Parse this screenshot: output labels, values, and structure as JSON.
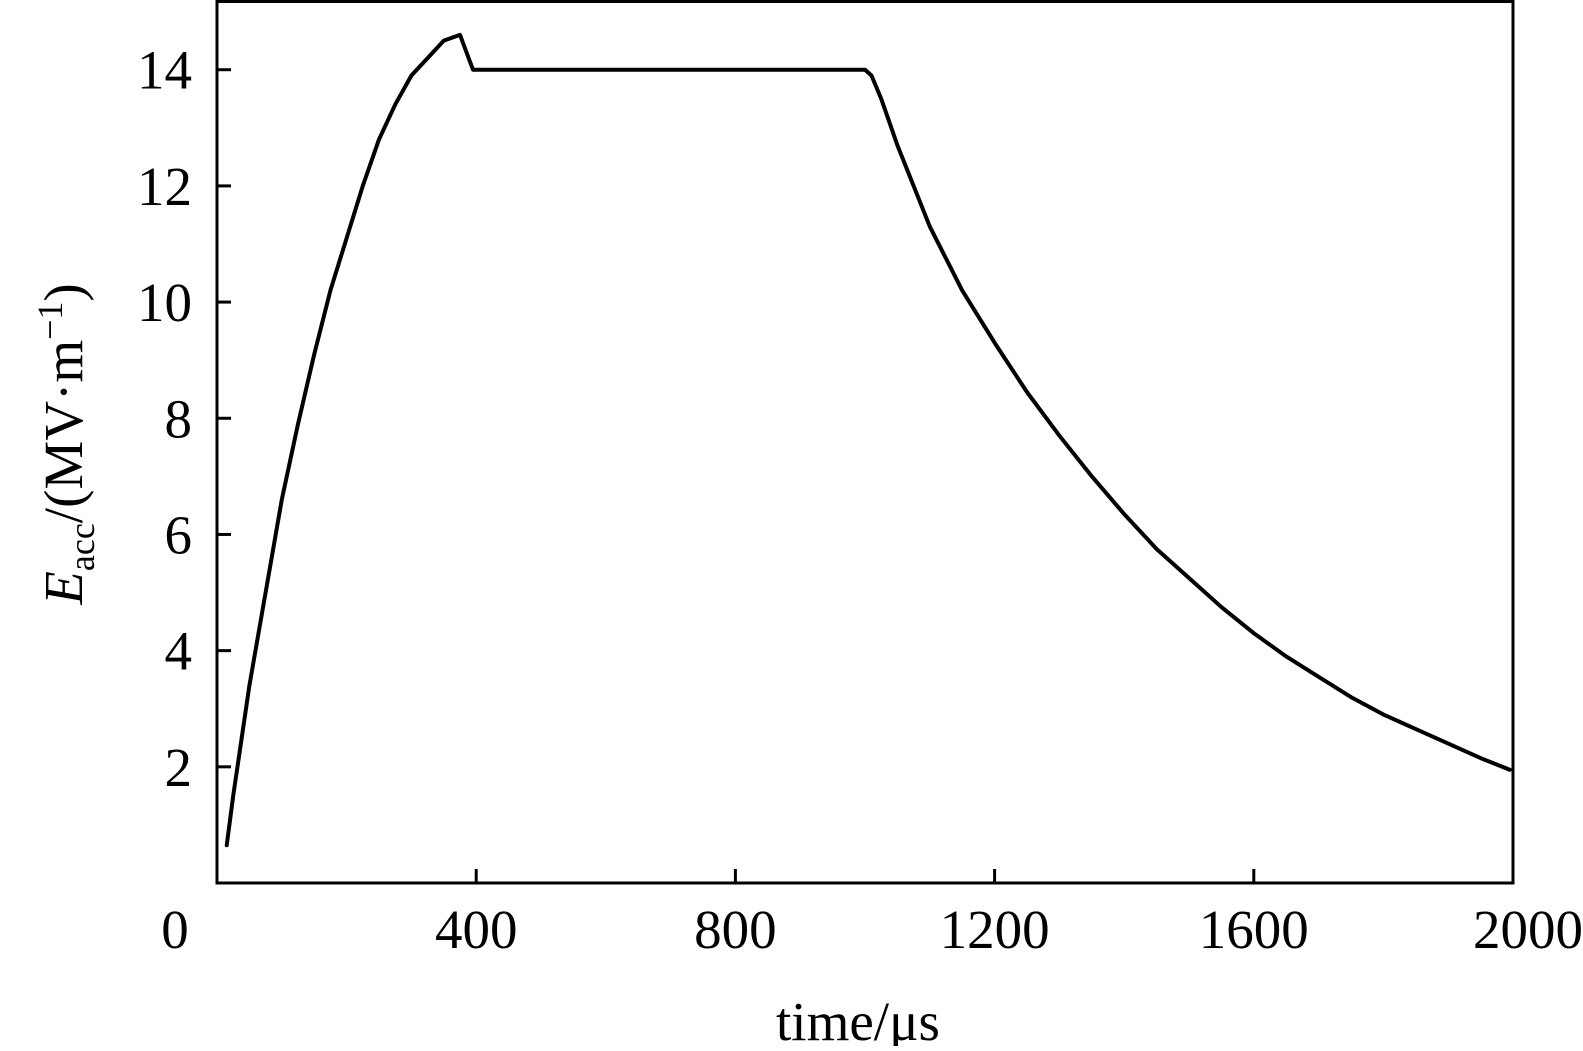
{
  "chart_data": {
    "type": "line",
    "title": "",
    "xlabel": "time/μs",
    "ylabel": {
      "symbol": "E",
      "subscript": "acc",
      "unit_prefix": "/(MV·m",
      "unit_exponent": "−1",
      "unit_suffix": ")"
    },
    "xlim": [
      0,
      2000
    ],
    "ylim": [
      0,
      15.2
    ],
    "x_ticks": [
      0,
      400,
      800,
      1200,
      1600,
      2000
    ],
    "y_ticks": [
      2,
      4,
      6,
      8,
      10,
      12,
      14
    ],
    "grid": false,
    "legend": "none",
    "colors": {
      "line": "#000000",
      "axes": "#000000",
      "background": "#ffffff"
    },
    "series": [
      {
        "x": [
          15,
          25,
          50,
          75,
          100,
          125,
          150,
          175,
          200,
          225,
          250,
          275,
          300,
          325,
          350,
          375,
          385,
          395,
          405,
          420,
          500,
          600,
          700,
          800,
          900,
          960,
          985,
          1000,
          1010,
          1025,
          1050,
          1075,
          1100,
          1150,
          1200,
          1250,
          1300,
          1350,
          1400,
          1450,
          1500,
          1550,
          1600,
          1650,
          1700,
          1750,
          1800,
          1850,
          1900,
          1950,
          1995
        ],
        "y": [
          0.65,
          1.5,
          3.4,
          5.0,
          6.6,
          7.9,
          9.1,
          10.2,
          11.1,
          12.0,
          12.8,
          13.4,
          13.9,
          14.2,
          14.5,
          14.6,
          14.3,
          14.0,
          14.0,
          14.0,
          14.0,
          14.0,
          14.0,
          14.0,
          14.0,
          14.0,
          14.0,
          14.0,
          13.9,
          13.5,
          12.7,
          12.0,
          11.3,
          10.2,
          9.3,
          8.45,
          7.7,
          7.0,
          6.35,
          5.75,
          5.25,
          4.75,
          4.3,
          3.9,
          3.55,
          3.2,
          2.9,
          2.65,
          2.4,
          2.15,
          1.95
        ]
      }
    ]
  }
}
